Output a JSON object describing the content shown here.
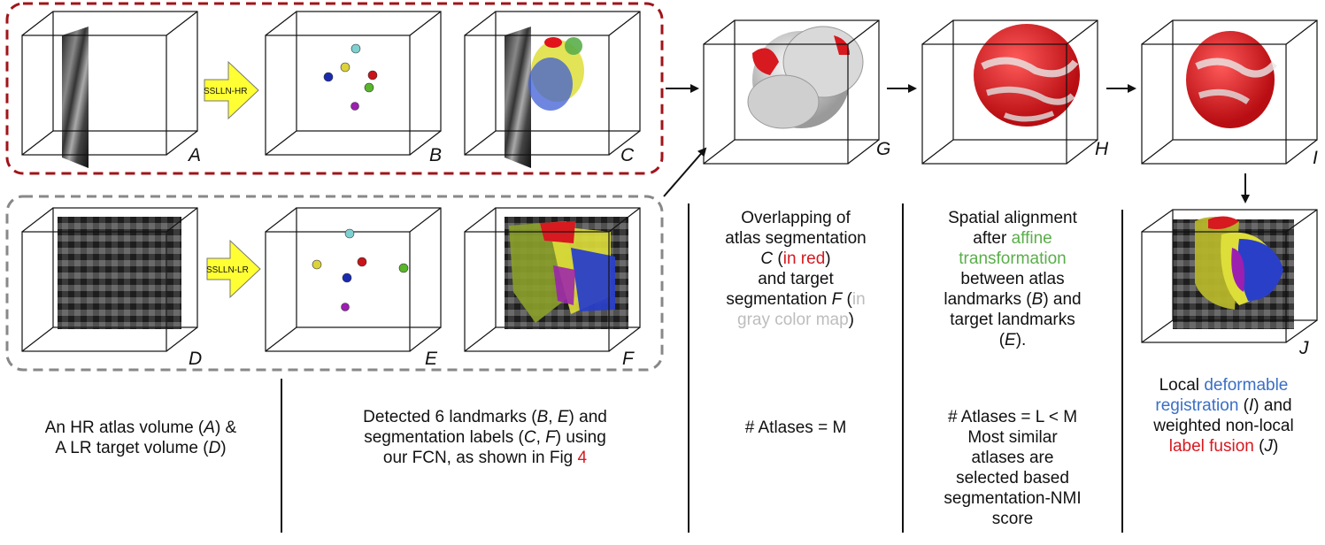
{
  "panels": {
    "A": "A",
    "B": "B",
    "C": "C",
    "D": "D",
    "E": "E",
    "F": "F",
    "G": "G",
    "H": "H",
    "I": "I",
    "J": "J"
  },
  "arrows": {
    "hr": "SSLLN-HR",
    "lr": "SSLLN-LR"
  },
  "colors": {
    "red": "#d71920",
    "green": "#5aae4a",
    "blue": "#3a6fc4",
    "light_gray": "#bdbdbd",
    "hr_box": "#a0141a",
    "lr_box": "#888888",
    "arrow_fill": "#ffff33"
  },
  "captions": {
    "col1": {
      "t1": "An HR atlas volume (",
      "A": "A",
      "t2": ") &",
      "t3": "A LR target volume (",
      "D": "D",
      "t4": ")"
    },
    "col2": {
      "t1": "Detected 6 landmarks (",
      "B": "B",
      "c1": ", ",
      "E": "E",
      "t2": ") and",
      "t3": "segmentation labels (",
      "C": "C",
      "c2": ", ",
      "F": "F",
      "t4": ") using",
      "t5": "our FCN, as shown in Fig ",
      "fig": "4"
    },
    "col3": {
      "l1": "Overlapping of",
      "l2": "atlas segmentation",
      "C": "C",
      "sp": " (",
      "in_red": "in red",
      "cl": ")",
      "l4": "and target",
      "l5a": "segmentation ",
      "F": "F",
      "op": " (",
      "in": "in",
      "gray": "gray color map",
      "cl2": ")",
      "atlases": "# Atlases = M"
    },
    "col4": {
      "l1": "Spatial alignment",
      "l2a": "after ",
      "affine": "affine",
      "transformation": "transformation",
      "l4": "between atlas",
      "l5a": "landmarks (",
      "B": "B",
      "l5b": ") and",
      "l6": "target landmarks",
      "op": "(",
      "E": "E",
      "cl": ").",
      "atlases": "# Atlases = L < M",
      "m1": "Most similar",
      "m2": "atlases are",
      "m3": "selected based",
      "m4": "segmentation-NMI",
      "m5": "score"
    },
    "col5": {
      "l1a": "Local ",
      "deformable": "deformable",
      "registration": "registration",
      "l2b": " (",
      "I": "I",
      "l2c": ") and",
      "l3": "weighted non-local",
      "fusion": "label fusion",
      "l4b": " (",
      "J": "J",
      "l4c": ")"
    }
  }
}
